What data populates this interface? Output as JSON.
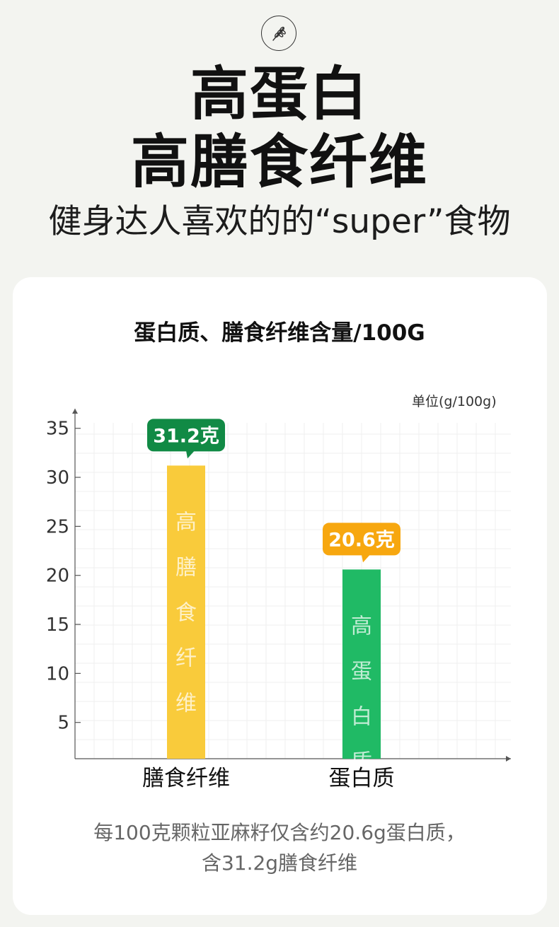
{
  "logo_icon": "wheat-icon",
  "headline": {
    "line1": "高蛋白",
    "line2": "高膳食纤维",
    "subtitle": "健身达人喜欢的的“super”食物"
  },
  "card": {
    "title": "蛋白质、膳食纤维含量/100G",
    "unit": "单位(g/100g)",
    "caption_line1": "每100克颗粒亚麻籽仅含约20.6g蛋白质，",
    "caption_line2": "含31.2g膳食纤维"
  },
  "chart_data": {
    "type": "bar",
    "categories": [
      "膳食纤维",
      "蛋白质"
    ],
    "values": [
      31.2,
      20.6
    ],
    "value_labels": [
      "31.2克",
      "20.6克"
    ],
    "bar_inner_text": [
      "高膳食纤维",
      "高蛋白质"
    ],
    "colors": [
      "#f9cb3b",
      "#20ba65"
    ],
    "label_colors": [
      "#118a45",
      "#f7a70f"
    ],
    "yticks": [
      5,
      10,
      15,
      20,
      25,
      30,
      35
    ],
    "ylim": [
      1.3,
      37
    ],
    "ylabel": "单位(g/100g)",
    "grid": true
  }
}
